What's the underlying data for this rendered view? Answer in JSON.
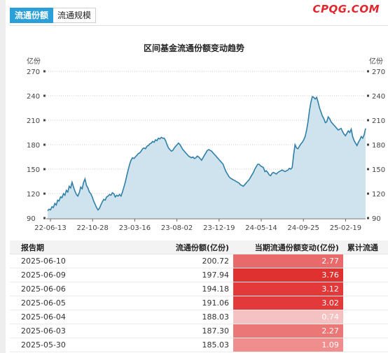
{
  "tabs": [
    {
      "label": "流通份额",
      "active": true
    },
    {
      "label": "流通规模",
      "active": false
    }
  ],
  "brand": "CPQG.COM",
  "chart_data": {
    "type": "area",
    "title": "区间基金流通份额变动趋势",
    "ylabel_left": "亿份",
    "ylabel_right": "亿份",
    "ylim": [
      90,
      270
    ],
    "yticks": [
      90,
      120,
      150,
      180,
      210,
      240,
      270
    ],
    "xtick_labels": [
      "22-06-13",
      "22-10-28",
      "23-03-16",
      "23-08-02",
      "23-12-19",
      "24-05-14",
      "24-09-25",
      "25-02-19"
    ],
    "grid": true,
    "line_color": "#2f7fa8",
    "fill_color": "#cfe3ee",
    "series": [
      {
        "values": [
          99,
          101,
          100,
          104,
          103,
          108,
          106,
          112,
          111,
          116,
          115,
          120,
          118,
          124,
          122,
          129,
          127,
          134,
          128,
          123,
          119,
          117,
          121,
          128,
          126,
          134,
          138,
          130,
          127,
          122,
          120,
          116,
          111,
          107,
          103,
          100,
          102,
          106,
          110,
          113,
          112,
          116,
          117,
          119,
          118,
          121,
          120,
          116,
          118,
          117,
          119,
          117,
          122,
          128,
          134,
          142,
          149,
          156,
          161,
          164,
          163,
          165,
          167,
          169,
          170,
          172,
          175,
          176,
          175,
          178,
          179,
          181,
          182,
          184,
          183,
          186,
          185,
          188,
          187,
          189,
          188,
          188,
          185,
          180,
          176,
          174,
          172,
          173,
          176,
          178,
          180,
          182,
          180,
          177,
          174,
          172,
          170,
          168,
          166,
          165,
          164,
          165,
          163,
          164,
          166,
          165,
          163,
          161,
          164,
          167,
          170,
          173,
          174,
          173,
          172,
          170,
          168,
          166,
          164,
          162,
          160,
          158,
          156,
          151,
          147,
          144,
          141,
          139,
          138,
          137,
          136,
          135,
          134,
          133,
          131,
          130,
          129,
          131,
          133,
          135,
          137,
          140,
          143,
          146,
          150,
          153,
          156,
          156,
          154,
          153,
          152,
          147,
          148,
          146,
          143,
          142,
          145,
          146,
          145,
          144,
          146,
          147,
          148,
          149,
          148,
          147,
          148,
          149,
          151,
          150,
          152,
          168,
          180,
          176,
          175,
          178,
          181,
          183,
          186,
          190,
          198,
          208,
          222,
          232,
          239,
          238,
          236,
          238,
          232,
          225,
          220,
          215,
          212,
          207,
          208,
          214,
          212,
          208,
          206,
          204,
          202,
          200,
          198,
          199,
          200,
          196,
          193,
          191,
          194,
          197,
          195,
          199,
          190,
          185,
          182,
          179,
          183,
          186,
          190,
          188,
          192,
          200
        ]
      }
    ]
  },
  "table": {
    "headers": [
      "报告期",
      "流通份额(亿份)",
      "当期流通份额变动(亿份)",
      "累计流通"
    ],
    "rows": [
      {
        "date": "2025-06-10",
        "shares": "200.72",
        "change": "2.77",
        "change_value": 2.77,
        "bg": "#e96a6a"
      },
      {
        "date": "2025-06-09",
        "shares": "197.94",
        "change": "3.76",
        "change_value": 3.76,
        "bg": "#e03131"
      },
      {
        "date": "2025-06-06",
        "shares": "194.18",
        "change": "3.12",
        "change_value": 3.12,
        "bg": "#e3393a"
      },
      {
        "date": "2025-06-05",
        "shares": "191.06",
        "change": "3.02",
        "change_value": 3.02,
        "bg": "#e3393a"
      },
      {
        "date": "2025-06-04",
        "shares": "188.03",
        "change": "0.74",
        "change_value": 0.74,
        "bg": "#f4c2c2"
      },
      {
        "date": "2025-06-03",
        "shares": "187.30",
        "change": "2.27",
        "change_value": 2.27,
        "bg": "#ec7777"
      },
      {
        "date": "2025-05-30",
        "shares": "185.03",
        "change": "1.09",
        "change_value": 1.09,
        "bg": "#f08d8d"
      }
    ]
  }
}
